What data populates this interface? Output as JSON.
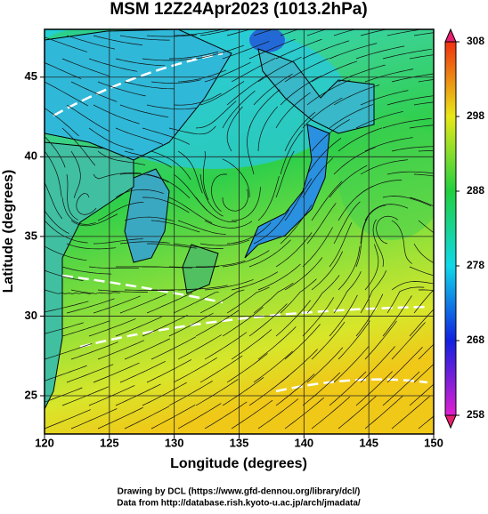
{
  "chart_data": {
    "type": "map",
    "title": "MSM 12Z24Apr2023 (1013.2hPa)",
    "x_label": "Longitude (degrees)",
    "y_label": "Latitude  (degrees)",
    "xlim": [
      120,
      150
    ],
    "ylim": [
      22.6,
      48
    ],
    "xticks": [
      120,
      125,
      130,
      135,
      140,
      145,
      150
    ],
    "yticks": [
      25,
      30,
      35,
      40,
      45
    ],
    "grid": true,
    "colorbar": {
      "lim": [
        258,
        308
      ],
      "ticks": [
        258,
        268,
        278,
        288,
        298,
        308
      ]
    },
    "credits": [
      "Drawing by DCL (https://www.gfd-dennou.org/library/dcl/)",
      "Data from http://database.rish.kyoto-u.ac.jp/arch/jmadata/"
    ]
  }
}
